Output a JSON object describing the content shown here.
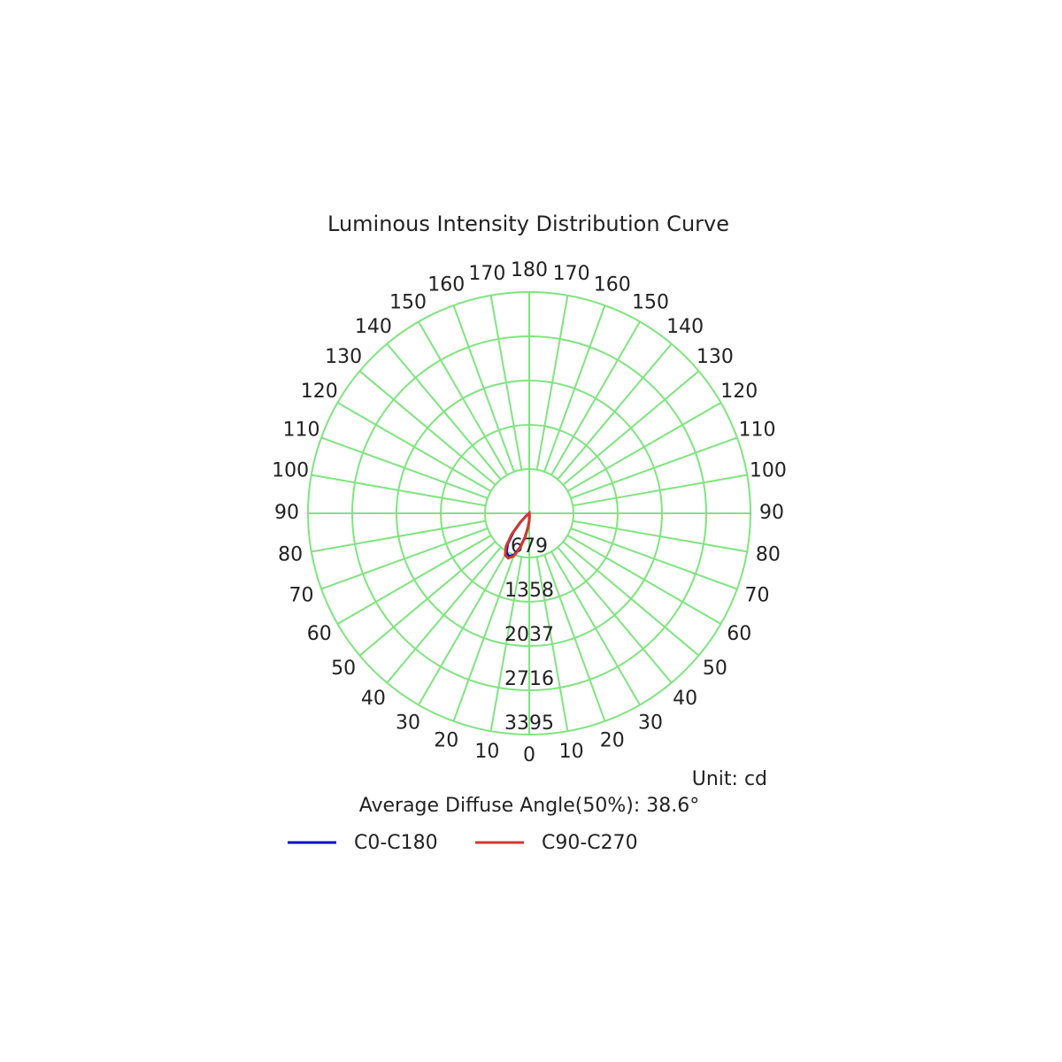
{
  "chart_data": {
    "type": "polar",
    "title": "Luminous Intensity Distribution Curve",
    "unit_label": "Unit: cd",
    "annotation": "Average Diffuse Angle(50%): 38.6°",
    "angles": [
      -60,
      -50,
      -45,
      -40,
      -35,
      -30,
      -25,
      -20,
      -15,
      -10,
      -5,
      0,
      5,
      10
    ],
    "series": [
      {
        "name": "C0-C180",
        "color": "#0a0ad0",
        "values": [
          0,
          50,
          180,
          380,
          580,
          700,
          730,
          680,
          540,
          370,
          210,
          110,
          35,
          0
        ]
      },
      {
        "name": "C90-C270",
        "color": "#d03a2a",
        "values": [
          0,
          60,
          200,
          420,
          620,
          740,
          760,
          700,
          560,
          380,
          220,
          120,
          40,
          0
        ]
      }
    ],
    "rlim": [
      0,
      3395
    ],
    "rticks": [
      679,
      1358,
      2037,
      2716,
      3395
    ],
    "xticks": [
      0,
      10,
      20,
      30,
      40,
      50,
      60,
      70,
      80,
      90,
      100,
      110,
      120,
      130,
      140,
      150,
      160,
      170,
      180,
      {
        "value": -10,
        "label": "10"
      },
      {
        "value": -20,
        "label": "20"
      },
      {
        "value": -30,
        "label": "30"
      },
      {
        "value": -40,
        "label": "40"
      },
      {
        "value": -50,
        "label": "50"
      },
      {
        "value": -60,
        "label": "60"
      },
      {
        "value": -70,
        "label": "70"
      },
      {
        "value": -80,
        "label": "80"
      },
      {
        "value": -90,
        "label": "90"
      },
      {
        "value": -100,
        "label": "100"
      },
      {
        "value": -110,
        "label": "110"
      },
      {
        "value": -120,
        "label": "120"
      },
      {
        "value": -130,
        "label": "130"
      },
      {
        "value": -140,
        "label": "140"
      },
      {
        "value": -150,
        "label": "150"
      },
      {
        "value": -160,
        "label": "160"
      },
      {
        "value": -170,
        "label": "170"
      }
    ],
    "grid_color": "#7ee57e"
  }
}
